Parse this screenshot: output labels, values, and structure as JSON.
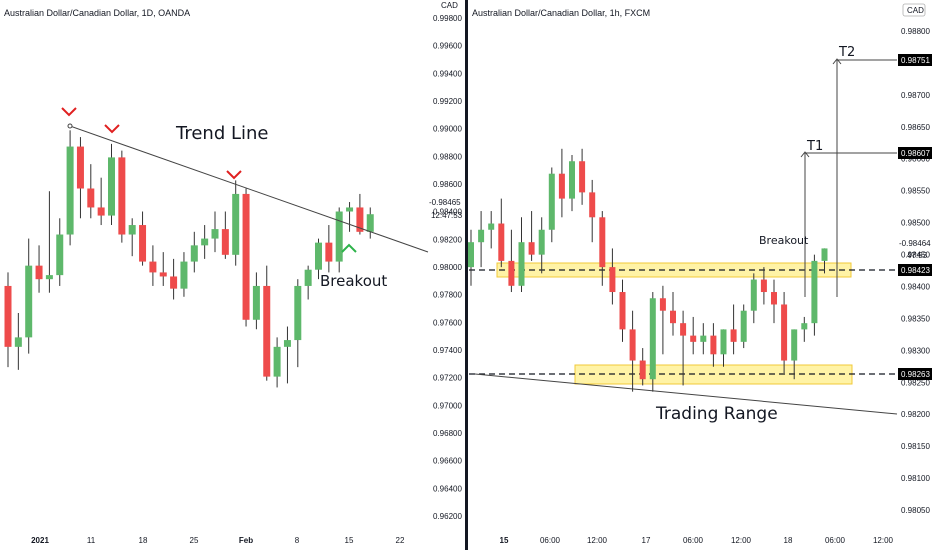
{
  "colors": {
    "up": "#5eb86b",
    "down": "#ee4b4b",
    "zone_fill": "#fff3a6",
    "zone_border": "#f0c838",
    "marker": "#e02020",
    "breakout_marker": "#2db34a",
    "line": "#555555",
    "label_bg": "#000000"
  },
  "left": {
    "title": "Australian Dollar/Canadian Dollar, 1D, OANDA",
    "currency": "CAD",
    "time_labels": [
      "2021",
      "11",
      "18",
      "25",
      "Feb",
      "8",
      "15",
      "22"
    ],
    "last_price": "0.98465",
    "countdown": "12:47:53",
    "annotations": {
      "trend_line": "Trend Line",
      "breakout": "Breakout"
    }
  },
  "right": {
    "title": "Australian Dollar/Canadian Dollar, 1h, FXCM",
    "currency": "CAD",
    "time_labels": [
      "15",
      "06:00",
      "12:00",
      "17",
      "06:00",
      "12:00",
      "18",
      "06:00",
      "12:00",
      "18:00",
      "17"
    ],
    "last_price": "0.98464",
    "countdown": "47:53",
    "annotations": {
      "breakout": "Breakout",
      "trading_range": "Trading Range",
      "t1": "T1",
      "t2": "T2"
    },
    "price_tags": [
      "0.98751",
      "0.98607",
      "0.98423",
      "0.98263"
    ]
  },
  "chart_data": [
    {
      "type": "candlestick",
      "title": "Australian Dollar/Canadian Dollar, 1D, OANDA",
      "ylabel": "CAD",
      "ylim": [
        0.962,
        0.9988
      ],
      "y_ticks": [
        "0.99800",
        "0.99600",
        "0.99400",
        "0.99200",
        "0.99000",
        "0.98800",
        "0.98600",
        "0.98400",
        "0.98200",
        "0.98000",
        "0.97800",
        "0.97600",
        "0.97400",
        "0.97200",
        "0.97000",
        "0.96800",
        "0.96600",
        "0.96400",
        "0.96200"
      ],
      "x_ticks": [
        "2021",
        "11",
        "18",
        "25",
        "Feb",
        "8",
        "15",
        "22"
      ],
      "candles": [
        {
          "o": 0.979,
          "h": 0.98,
          "l": 0.973,
          "c": 0.9745
        },
        {
          "o": 0.9745,
          "h": 0.977,
          "l": 0.9728,
          "c": 0.9752
        },
        {
          "o": 0.9752,
          "h": 0.9825,
          "l": 0.974,
          "c": 0.9805
        },
        {
          "o": 0.9805,
          "h": 0.982,
          "l": 0.9785,
          "c": 0.9795
        },
        {
          "o": 0.9795,
          "h": 0.986,
          "l": 0.9785,
          "c": 0.9798
        },
        {
          "o": 0.9798,
          "h": 0.984,
          "l": 0.979,
          "c": 0.9828
        },
        {
          "o": 0.9828,
          "h": 0.9905,
          "l": 0.982,
          "c": 0.9893
        },
        {
          "o": 0.9893,
          "h": 0.99,
          "l": 0.984,
          "c": 0.9862
        },
        {
          "o": 0.9862,
          "h": 0.988,
          "l": 0.984,
          "c": 0.9848
        },
        {
          "o": 0.9848,
          "h": 0.987,
          "l": 0.9835,
          "c": 0.9842
        },
        {
          "o": 0.9842,
          "h": 0.9895,
          "l": 0.9835,
          "c": 0.9885
        },
        {
          "o": 0.9885,
          "h": 0.989,
          "l": 0.9822,
          "c": 0.9828
        },
        {
          "o": 0.9828,
          "h": 0.984,
          "l": 0.9812,
          "c": 0.9835
        },
        {
          "o": 0.9835,
          "h": 0.9845,
          "l": 0.9805,
          "c": 0.9808
        },
        {
          "o": 0.9808,
          "h": 0.982,
          "l": 0.979,
          "c": 0.98
        },
        {
          "o": 0.98,
          "h": 0.9815,
          "l": 0.979,
          "c": 0.9797
        },
        {
          "o": 0.9797,
          "h": 0.981,
          "l": 0.978,
          "c": 0.9788
        },
        {
          "o": 0.9788,
          "h": 0.9815,
          "l": 0.9782,
          "c": 0.9808
        },
        {
          "o": 0.9808,
          "h": 0.983,
          "l": 0.98,
          "c": 0.982
        },
        {
          "o": 0.982,
          "h": 0.9835,
          "l": 0.981,
          "c": 0.9825
        },
        {
          "o": 0.9825,
          "h": 0.9845,
          "l": 0.9815,
          "c": 0.9832
        },
        {
          "o": 0.9832,
          "h": 0.9845,
          "l": 0.981,
          "c": 0.9813
        },
        {
          "o": 0.9813,
          "h": 0.9868,
          "l": 0.9805,
          "c": 0.9858
        },
        {
          "o": 0.9858,
          "h": 0.9862,
          "l": 0.976,
          "c": 0.9765
        },
        {
          "o": 0.9765,
          "h": 0.98,
          "l": 0.9758,
          "c": 0.979
        },
        {
          "o": 0.979,
          "h": 0.9805,
          "l": 0.972,
          "c": 0.9723
        },
        {
          "o": 0.9723,
          "h": 0.9752,
          "l": 0.9715,
          "c": 0.9745
        },
        {
          "o": 0.9745,
          "h": 0.976,
          "l": 0.9718,
          "c": 0.975
        },
        {
          "o": 0.975,
          "h": 0.9795,
          "l": 0.973,
          "c": 0.979
        },
        {
          "o": 0.979,
          "h": 0.9805,
          "l": 0.978,
          "c": 0.9802
        },
        {
          "o": 0.9802,
          "h": 0.9825,
          "l": 0.9795,
          "c": 0.9822
        },
        {
          "o": 0.9822,
          "h": 0.9835,
          "l": 0.98,
          "c": 0.9808
        },
        {
          "o": 0.9808,
          "h": 0.9848,
          "l": 0.98,
          "c": 0.9845
        },
        {
          "o": 0.9845,
          "h": 0.9852,
          "l": 0.983,
          "c": 0.9848
        },
        {
          "o": 0.9848,
          "h": 0.9858,
          "l": 0.9828,
          "c": 0.983
        },
        {
          "o": 0.983,
          "h": 0.9848,
          "l": 0.9825,
          "c": 0.9843
        }
      ],
      "annotations": [
        "Trend Line",
        "Breakout"
      ]
    },
    {
      "type": "candlestick",
      "title": "Australian Dollar/Canadian Dollar, 1h, FXCM",
      "ylabel": "CAD",
      "ylim": [
        0.9805,
        0.9884
      ],
      "y_ticks": [
        "0.98800",
        "0.98750",
        "0.98700",
        "0.98650",
        "0.98600",
        "0.98550",
        "0.98500",
        "0.98450",
        "0.98400",
        "0.98350",
        "0.98300",
        "0.98250",
        "0.98200",
        "0.98150",
        "0.98100",
        "0.98050"
      ],
      "x_ticks": [
        "15",
        "06:00",
        "12:00",
        "17",
        "06:00",
        "12:00",
        "18",
        "06:00",
        "12:00",
        "18:00",
        "17"
      ],
      "levels": {
        "resistance": 0.98423,
        "support": 0.98263,
        "t1": 0.98607,
        "t2": 0.98751
      },
      "candles": [
        {
          "o": 0.9844,
          "h": 0.985,
          "l": 0.9841,
          "c": 0.9848
        },
        {
          "o": 0.9848,
          "h": 0.9853,
          "l": 0.9844,
          "c": 0.985
        },
        {
          "o": 0.985,
          "h": 0.9853,
          "l": 0.9847,
          "c": 0.9851
        },
        {
          "o": 0.9851,
          "h": 0.9855,
          "l": 0.9844,
          "c": 0.9845
        },
        {
          "o": 0.9845,
          "h": 0.985,
          "l": 0.984,
          "c": 0.9841
        },
        {
          "o": 0.9841,
          "h": 0.9852,
          "l": 0.984,
          "c": 0.9848
        },
        {
          "o": 0.9848,
          "h": 0.9853,
          "l": 0.9845,
          "c": 0.9846
        },
        {
          "o": 0.9846,
          "h": 0.9852,
          "l": 0.9843,
          "c": 0.985
        },
        {
          "o": 0.985,
          "h": 0.986,
          "l": 0.9848,
          "c": 0.9859
        },
        {
          "o": 0.9859,
          "h": 0.9863,
          "l": 0.9852,
          "c": 0.9855
        },
        {
          "o": 0.9855,
          "h": 0.9862,
          "l": 0.9853,
          "c": 0.9861
        },
        {
          "o": 0.9861,
          "h": 0.9863,
          "l": 0.9854,
          "c": 0.9856
        },
        {
          "o": 0.9856,
          "h": 0.9858,
          "l": 0.9848,
          "c": 0.9852
        },
        {
          "o": 0.9852,
          "h": 0.9853,
          "l": 0.9841,
          "c": 0.9844
        },
        {
          "o": 0.9844,
          "h": 0.9847,
          "l": 0.9838,
          "c": 0.984
        },
        {
          "o": 0.984,
          "h": 0.9842,
          "l": 0.9832,
          "c": 0.9834
        },
        {
          "o": 0.9834,
          "h": 0.9837,
          "l": 0.9824,
          "c": 0.9829
        },
        {
          "o": 0.9829,
          "h": 0.9831,
          "l": 0.9825,
          "c": 0.9826
        },
        {
          "o": 0.9826,
          "h": 0.984,
          "l": 0.9824,
          "c": 0.9839
        },
        {
          "o": 0.9839,
          "h": 0.9841,
          "l": 0.983,
          "c": 0.9837
        },
        {
          "o": 0.9837,
          "h": 0.984,
          "l": 0.9833,
          "c": 0.9835
        },
        {
          "o": 0.9835,
          "h": 0.9837,
          "l": 0.9825,
          "c": 0.9833
        },
        {
          "o": 0.9833,
          "h": 0.9836,
          "l": 0.983,
          "c": 0.9832
        },
        {
          "o": 0.9832,
          "h": 0.9835,
          "l": 0.983,
          "c": 0.9833
        },
        {
          "o": 0.9833,
          "h": 0.9835,
          "l": 0.9828,
          "c": 0.983
        },
        {
          "o": 0.983,
          "h": 0.9834,
          "l": 0.9828,
          "c": 0.9834
        },
        {
          "o": 0.9834,
          "h": 0.9838,
          "l": 0.983,
          "c": 0.9832
        },
        {
          "o": 0.9832,
          "h": 0.9838,
          "l": 0.9831,
          "c": 0.9837
        },
        {
          "o": 0.9837,
          "h": 0.9843,
          "l": 0.9835,
          "c": 0.9842
        },
        {
          "o": 0.9842,
          "h": 0.9844,
          "l": 0.9838,
          "c": 0.984
        },
        {
          "o": 0.984,
          "h": 0.9842,
          "l": 0.9835,
          "c": 0.9838
        },
        {
          "o": 0.9838,
          "h": 0.984,
          "l": 0.9827,
          "c": 0.9829
        },
        {
          "o": 0.9829,
          "h": 0.9834,
          "l": 0.9826,
          "c": 0.9834
        },
        {
          "o": 0.9834,
          "h": 0.9836,
          "l": 0.9832,
          "c": 0.9835
        },
        {
          "o": 0.9835,
          "h": 0.9846,
          "l": 0.9833,
          "c": 0.9845
        },
        {
          "o": 0.9845,
          "h": 0.9847,
          "l": 0.9843,
          "c": 0.9847
        }
      ],
      "annotations": [
        "Breakout",
        "Trading Range",
        "T1",
        "T2"
      ]
    }
  ]
}
